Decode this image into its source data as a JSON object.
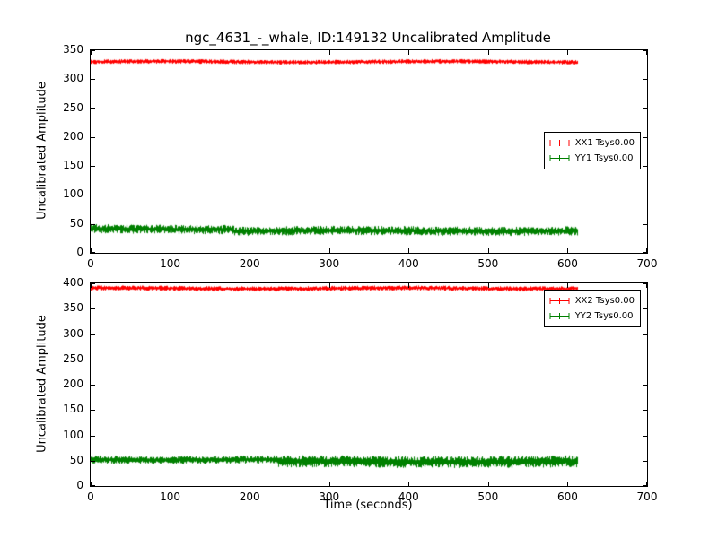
{
  "title": "ngc_4631_-_whale, ID:149132 Uncalibrated Amplitude",
  "xlabel": "Time (seconds)",
  "chart_data": [
    {
      "type": "line",
      "title": "ngc_4631_-_whale, ID:149132 Uncalibrated Amplitude",
      "xlabel": "",
      "ylabel": "Uncalibrated Amplitude",
      "xlim": [
        0,
        700
      ],
      "ylim": [
        0,
        350
      ],
      "xticks": [
        0,
        100,
        200,
        300,
        400,
        500,
        600,
        700
      ],
      "yticks": [
        0,
        50,
        100,
        150,
        200,
        250,
        300,
        350
      ],
      "grid": false,
      "legend": {
        "position": "center right",
        "entries": [
          {
            "label": "XX1 Tsys0.00",
            "color": "#ff0000"
          },
          {
            "label": "YY1 Tsys0.00",
            "color": "#008000"
          }
        ]
      },
      "series": [
        {
          "name": "XX1",
          "color": "#ff0000",
          "style": "errorbar-band",
          "segments": [
            {
              "x0": 0,
              "x1": 612,
              "mean": 330,
              "noise": 4
            }
          ]
        },
        {
          "name": "YY1",
          "color": "#008000",
          "style": "errorbar-band",
          "segments": [
            {
              "x0": 0,
              "x1": 180,
              "mean": 41,
              "noise": 8
            },
            {
              "x0": 180,
              "x1": 612,
              "mean": 38,
              "noise": 8
            }
          ]
        }
      ]
    },
    {
      "type": "line",
      "title": "",
      "xlabel": "Time (seconds)",
      "ylabel": "Uncalibrated Amplitude",
      "xlim": [
        0,
        700
      ],
      "ylim": [
        0,
        400
      ],
      "xticks": [
        0,
        100,
        200,
        300,
        400,
        500,
        600,
        700
      ],
      "yticks": [
        0,
        50,
        100,
        150,
        200,
        250,
        300,
        350,
        400
      ],
      "grid": false,
      "legend": {
        "position": "upper right",
        "entries": [
          {
            "label": "XX2 Tsys0.00",
            "color": "#ff0000"
          },
          {
            "label": "YY2 Tsys0.00",
            "color": "#008000"
          }
        ]
      },
      "series": [
        {
          "name": "XX2",
          "color": "#ff0000",
          "style": "errorbar-band",
          "segments": [
            {
              "x0": 0,
              "x1": 612,
              "mean": 390,
              "noise": 5
            }
          ]
        },
        {
          "name": "YY2",
          "color": "#008000",
          "style": "errorbar-band",
          "segments": [
            {
              "x0": 0,
              "x1": 235,
              "mean": 52,
              "noise": 8
            },
            {
              "x0": 235,
              "x1": 612,
              "mean": 48,
              "noise": 12
            }
          ]
        }
      ]
    }
  ]
}
